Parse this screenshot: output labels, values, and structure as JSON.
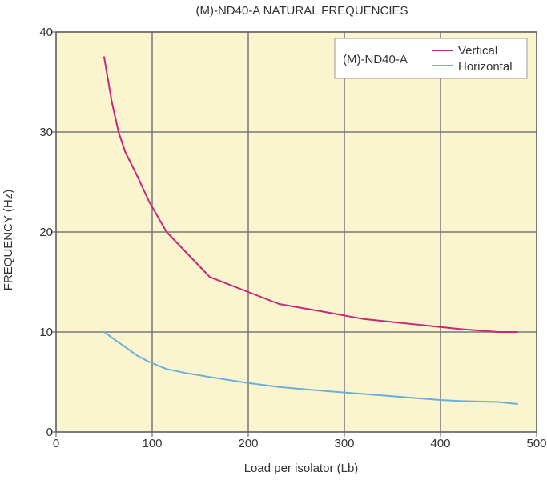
{
  "chart_data": {
    "type": "line",
    "title": "(M)-ND40-A NATURAL FREQUENCIES",
    "xlabel": "Load per isolator (Lb)",
    "ylabel": "FREQUENCY (Hz)",
    "xlim": [
      0,
      500
    ],
    "ylim": [
      0,
      40
    ],
    "xticks": [
      0,
      100,
      200,
      300,
      400,
      500
    ],
    "yticks": [
      0,
      10,
      20,
      30,
      40
    ],
    "xtick_labels": [
      "0",
      "100",
      "200",
      "300",
      "400",
      "500"
    ],
    "ytick_labels": [
      "0",
      "10",
      "20",
      "30",
      "40"
    ],
    "grid": true,
    "legend": {
      "title": "(M)-ND40-A",
      "placement": "top-right"
    },
    "series": [
      {
        "name": "Vertical",
        "color": "#c8287a",
        "x": [
          50,
          58,
          65,
          72,
          85,
          97,
          115,
          135,
          160,
          200,
          232,
          280,
          320,
          360,
          400,
          420,
          460,
          480
        ],
        "y": [
          37.5,
          33,
          30,
          28,
          25.5,
          23,
          20,
          18,
          15.5,
          14,
          12.8,
          12,
          11.3,
          10.9,
          10.5,
          10.3,
          10,
          10
        ]
      },
      {
        "name": "Horizontal",
        "color": "#6aaedb",
        "x": [
          50,
          60,
          75,
          85,
          97,
          115,
          135,
          160,
          200,
          232,
          280,
          320,
          360,
          400,
          420,
          460,
          480
        ],
        "y": [
          10,
          9.3,
          8.3,
          7.6,
          7.0,
          6.3,
          5.9,
          5.5,
          4.9,
          4.5,
          4.1,
          3.8,
          3.5,
          3.2,
          3.1,
          3.0,
          2.8
        ]
      }
    ],
    "colors": {
      "plot_background": "#fbf5cf",
      "grid": "#777777",
      "frame": "#555555"
    }
  }
}
